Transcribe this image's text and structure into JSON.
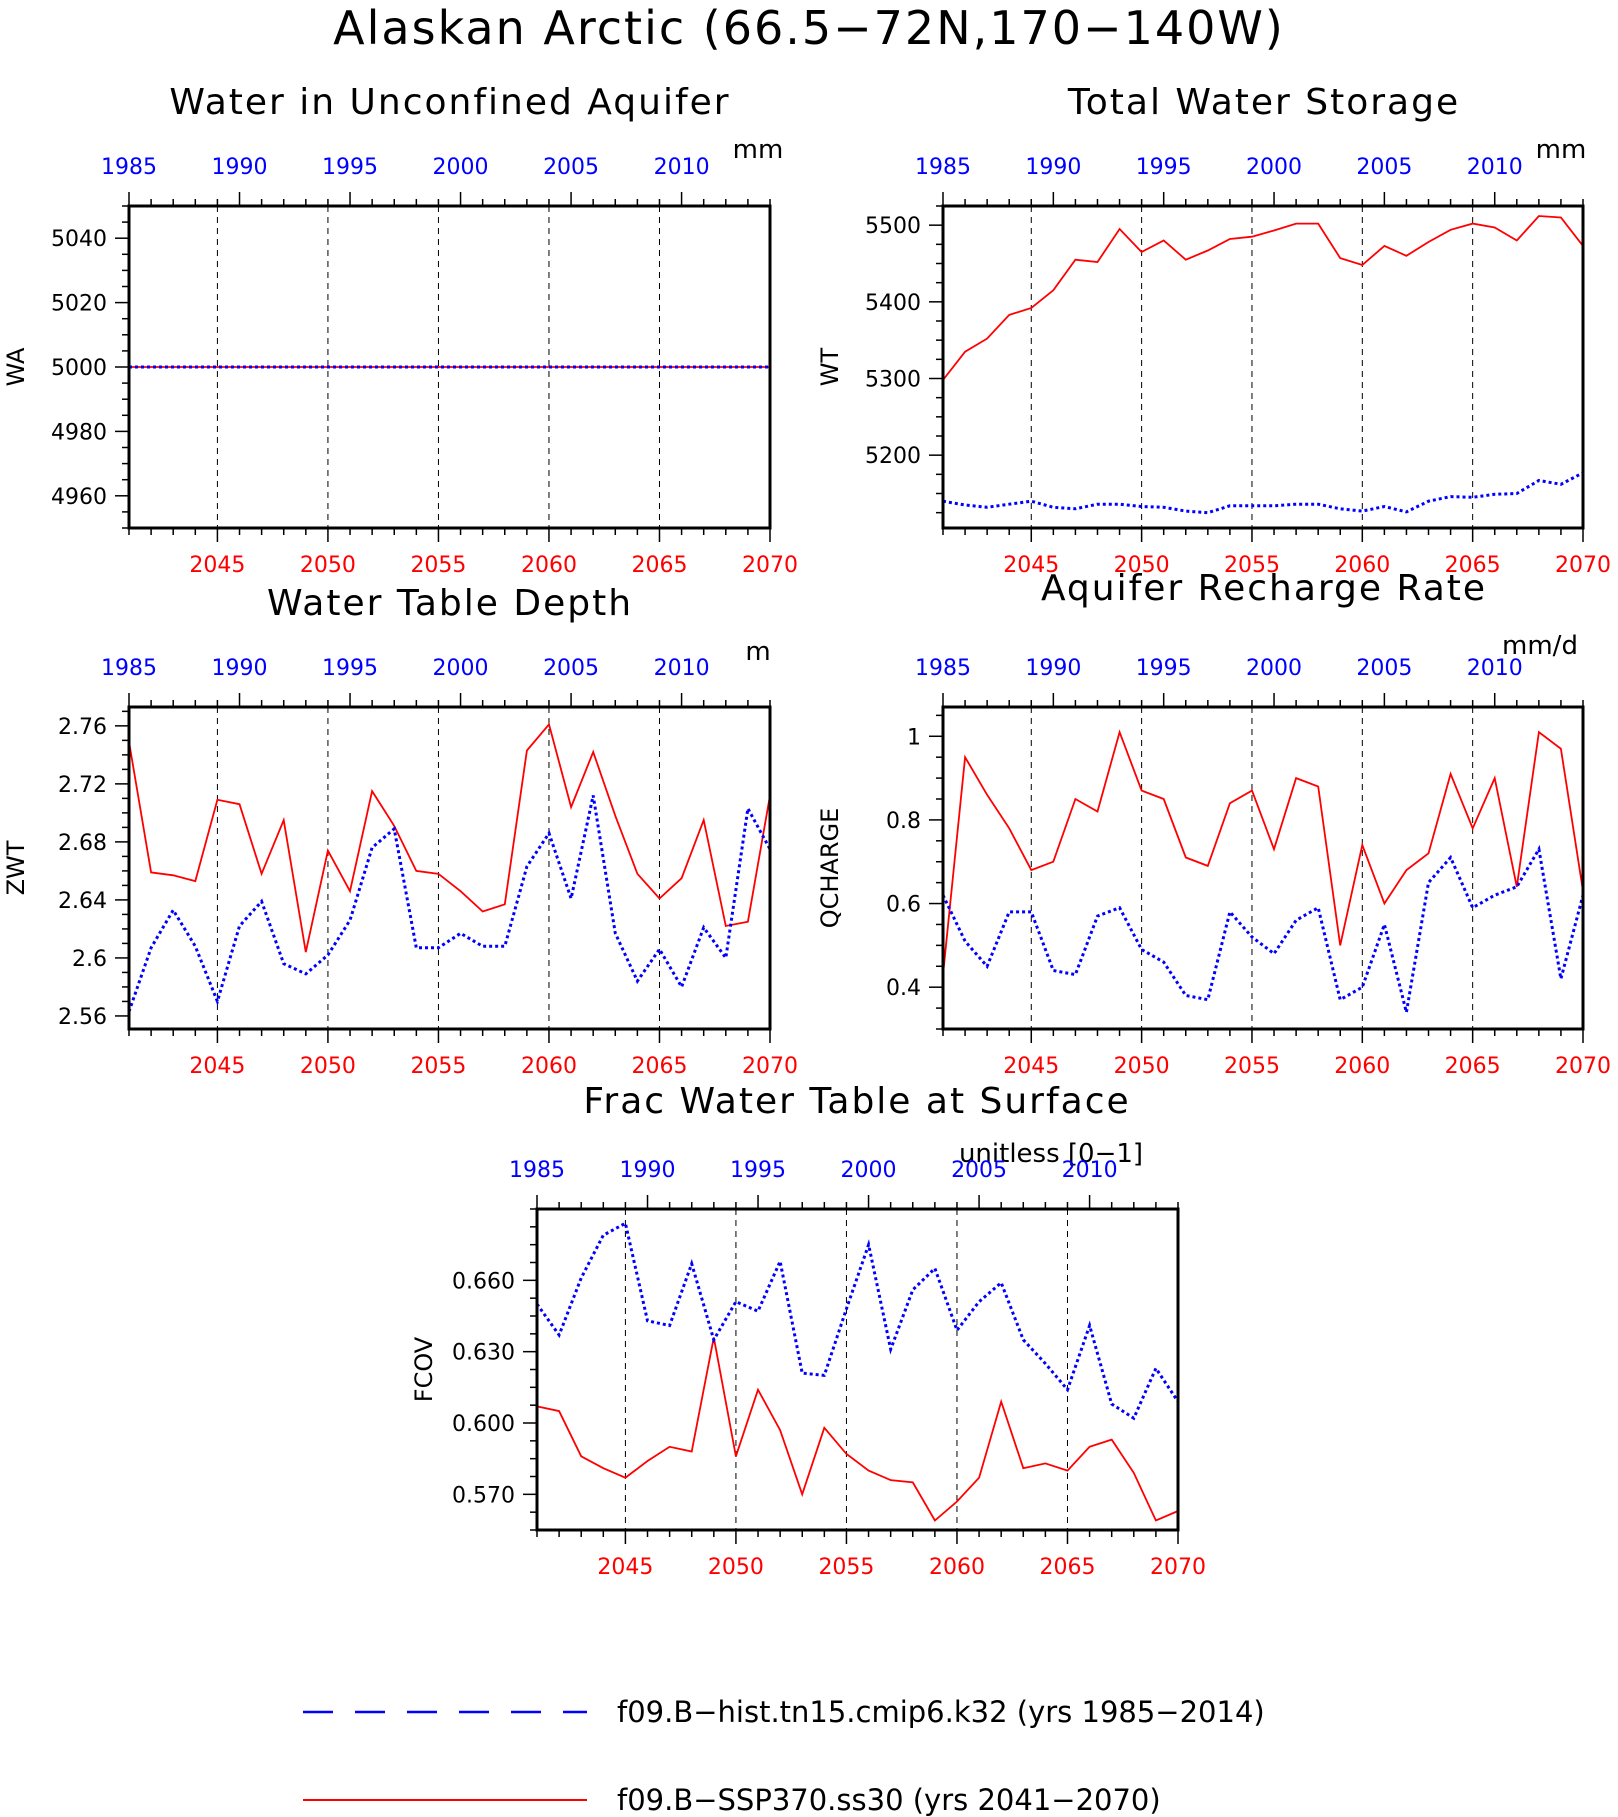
{
  "title": "Alaskan Arctic (66.5−72N,170−140W)",
  "colors": {
    "hist": "#0000ff",
    "future": "#ff0000",
    "frame": "#000000"
  },
  "legend": [
    {
      "label": "f09.B−hist.tn15.cmip6.k32 (yrs 1985−2014)",
      "color": "#0000ff",
      "style": "dashed"
    },
    {
      "label": "f09.B−SSP370.ss30 (yrs 2041−2070)",
      "color": "#ff0000",
      "style": "solid"
    }
  ],
  "chart_data": [
    {
      "type": "line",
      "title": "Water in Unconfined Aquifer",
      "units": "mm",
      "ylabel": "WA",
      "ylim": [
        4950,
        5050
      ],
      "yticks": [
        4960,
        4980,
        5000,
        5020,
        5040
      ],
      "x_future": {
        "range": [
          2041,
          2070
        ],
        "ticks": [
          2045,
          2050,
          2055,
          2060,
          2065,
          2070
        ]
      },
      "x_hist": {
        "range": [
          1985,
          2014
        ],
        "ticks": [
          1985,
          1990,
          1995,
          2000,
          2005,
          2010
        ]
      },
      "grid": "vertical dashed at bottom-axis ticks",
      "series": [
        {
          "color": "#ff0000",
          "style": "solid",
          "x_axis": "future",
          "values": [
            5000,
            5000,
            5000,
            5000,
            5000,
            5000,
            5000,
            5000,
            5000,
            5000,
            5000,
            5000,
            5000,
            5000,
            5000,
            5000,
            5000,
            5000,
            5000,
            5000,
            5000,
            5000,
            5000,
            5000,
            5000,
            5000,
            5000,
            5000,
            5000,
            5000
          ]
        },
        {
          "color": "#0000ff",
          "style": "dotted",
          "x_axis": "hist",
          "values": [
            5000,
            5000,
            5000,
            5000,
            5000,
            5000,
            5000,
            5000,
            5000,
            5000,
            5000,
            5000,
            5000,
            5000,
            5000,
            5000,
            5000,
            5000,
            5000,
            5000,
            5000,
            5000,
            5000,
            5000,
            5000,
            5000,
            5000,
            5000,
            5000,
            5000
          ]
        }
      ]
    },
    {
      "type": "line",
      "title": "Total Water Storage",
      "units": "mm",
      "ylabel": "WT",
      "ylim": [
        5105,
        5525
      ],
      "yticks": [
        5200,
        5300,
        5400,
        5500
      ],
      "x_future": {
        "range": [
          2041,
          2070
        ],
        "ticks": [
          2045,
          2050,
          2055,
          2060,
          2065,
          2070
        ]
      },
      "x_hist": {
        "range": [
          1985,
          2014
        ],
        "ticks": [
          1985,
          1990,
          1995,
          2000,
          2005,
          2010
        ]
      },
      "grid": "vertical dashed at bottom-axis ticks",
      "series": [
        {
          "color": "#ff0000",
          "style": "solid",
          "x_axis": "future",
          "values": [
            5298,
            5335,
            5352,
            5383,
            5392,
            5415,
            5455,
            5452,
            5495,
            5465,
            5480,
            5455,
            5467,
            5482,
            5485,
            5493,
            5502,
            5502,
            5457,
            5448,
            5473,
            5460,
            5478,
            5494,
            5502,
            5497,
            5480,
            5512,
            5510,
            5473
          ]
        },
        {
          "color": "#0000ff",
          "style": "dotted",
          "x_axis": "hist",
          "values": [
            5140,
            5135,
            5132,
            5136,
            5140,
            5132,
            5130,
            5136,
            5136,
            5133,
            5132,
            5127,
            5125,
            5134,
            5134,
            5134,
            5136,
            5136,
            5130,
            5127,
            5133,
            5126,
            5140,
            5146,
            5145,
            5149,
            5150,
            5167,
            5162,
            5177
          ]
        }
      ]
    },
    {
      "type": "line",
      "title": "Water Table Depth",
      "units": "m",
      "ylabel": "ZWT",
      "ylim": [
        2.551,
        2.773
      ],
      "yticks": [
        2.56,
        2.6,
        2.64,
        2.68,
        2.72,
        2.76
      ],
      "x_future": {
        "range": [
          2041,
          2070
        ],
        "ticks": [
          2045,
          2050,
          2055,
          2060,
          2065,
          2070
        ]
      },
      "x_hist": {
        "range": [
          1985,
          2014
        ],
        "ticks": [
          1985,
          1990,
          1995,
          2000,
          2005,
          2010
        ]
      },
      "grid": "vertical dashed at bottom-axis ticks",
      "series": [
        {
          "color": "#ff0000",
          "style": "solid",
          "x_axis": "future",
          "values": [
            2.749,
            2.659,
            2.657,
            2.653,
            2.709,
            2.706,
            2.658,
            2.695,
            2.604,
            2.674,
            2.646,
            2.715,
            2.691,
            2.66,
            2.658,
            2.646,
            2.632,
            2.637,
            2.743,
            2.761,
            2.704,
            2.742,
            2.698,
            2.658,
            2.641,
            2.655,
            2.695,
            2.622,
            2.625,
            2.712
          ]
        },
        {
          "color": "#0000ff",
          "style": "dotted",
          "x_axis": "hist",
          "values": [
            2.563,
            2.607,
            2.633,
            2.608,
            2.57,
            2.622,
            2.639,
            2.596,
            2.589,
            2.602,
            2.626,
            2.676,
            2.689,
            2.607,
            2.607,
            2.617,
            2.608,
            2.608,
            2.663,
            2.686,
            2.641,
            2.712,
            2.617,
            2.584,
            2.606,
            2.58,
            2.621,
            2.6,
            2.703,
            2.675
          ]
        }
      ]
    },
    {
      "type": "line",
      "title": "Aquifer Recharge Rate",
      "units": "mm/d",
      "ylabel": "QCHARGE",
      "ylim": [
        0.3,
        1.07
      ],
      "yticks": [
        0.4,
        0.6,
        0.8,
        1.0
      ],
      "x_future": {
        "range": [
          2041,
          2070
        ],
        "ticks": [
          2045,
          2050,
          2055,
          2060,
          2065,
          2070
        ]
      },
      "x_hist": {
        "range": [
          1985,
          2014
        ],
        "ticks": [
          1985,
          1990,
          1995,
          2000,
          2005,
          2010
        ]
      },
      "grid": "vertical dashed at bottom-axis ticks",
      "series": [
        {
          "color": "#ff0000",
          "style": "solid",
          "x_axis": "future",
          "values": [
            0.43,
            0.95,
            0.86,
            0.78,
            0.68,
            0.7,
            0.85,
            0.82,
            1.01,
            0.87,
            0.85,
            0.71,
            0.69,
            0.84,
            0.87,
            0.73,
            0.9,
            0.88,
            0.5,
            0.74,
            0.6,
            0.68,
            0.72,
            0.91,
            0.78,
            0.9,
            0.64,
            1.01,
            0.97,
            0.63
          ]
        },
        {
          "color": "#0000ff",
          "style": "dotted",
          "x_axis": "hist",
          "values": [
            0.62,
            0.51,
            0.45,
            0.58,
            0.58,
            0.44,
            0.43,
            0.57,
            0.59,
            0.49,
            0.46,
            0.38,
            0.37,
            0.58,
            0.52,
            0.48,
            0.56,
            0.59,
            0.37,
            0.4,
            0.55,
            0.34,
            0.65,
            0.71,
            0.59,
            0.62,
            0.64,
            0.73,
            0.42,
            0.62
          ]
        }
      ]
    },
    {
      "type": "line",
      "title": "Frac Water Table at Surface",
      "units": "unitless [0−1]",
      "ylabel": "FCOV",
      "ylim": [
        0.555,
        0.69
      ],
      "yticks": [
        0.57,
        0.6,
        0.63,
        0.66
      ],
      "ytick_labels": [
        "0.570",
        "0.600",
        "0.630",
        "0.660"
      ],
      "x_future": {
        "range": [
          2041,
          2070
        ],
        "ticks": [
          2045,
          2050,
          2055,
          2060,
          2065,
          2070
        ]
      },
      "x_hist": {
        "range": [
          1985,
          2014
        ],
        "ticks": [
          1985,
          1990,
          1995,
          2000,
          2005,
          2010
        ]
      },
      "grid": "vertical dashed at bottom-axis ticks",
      "series": [
        {
          "color": "#ff0000",
          "style": "solid",
          "x_axis": "future",
          "values": [
            0.607,
            0.605,
            0.586,
            0.581,
            0.577,
            0.584,
            0.59,
            0.588,
            0.636,
            0.586,
            0.614,
            0.597,
            0.57,
            0.598,
            0.587,
            0.58,
            0.576,
            0.575,
            0.559,
            0.567,
            0.577,
            0.609,
            0.581,
            0.583,
            0.58,
            0.59,
            0.593,
            0.579,
            0.559,
            0.563
          ]
        },
        {
          "color": "#0000ff",
          "style": "dotted",
          "x_axis": "hist",
          "values": [
            0.65,
            0.637,
            0.661,
            0.679,
            0.684,
            0.643,
            0.641,
            0.667,
            0.635,
            0.651,
            0.647,
            0.668,
            0.621,
            0.62,
            0.648,
            0.675,
            0.631,
            0.656,
            0.665,
            0.639,
            0.651,
            0.659,
            0.635,
            0.625,
            0.614,
            0.641,
            0.608,
            0.602,
            0.623,
            0.609
          ]
        }
      ]
    }
  ]
}
